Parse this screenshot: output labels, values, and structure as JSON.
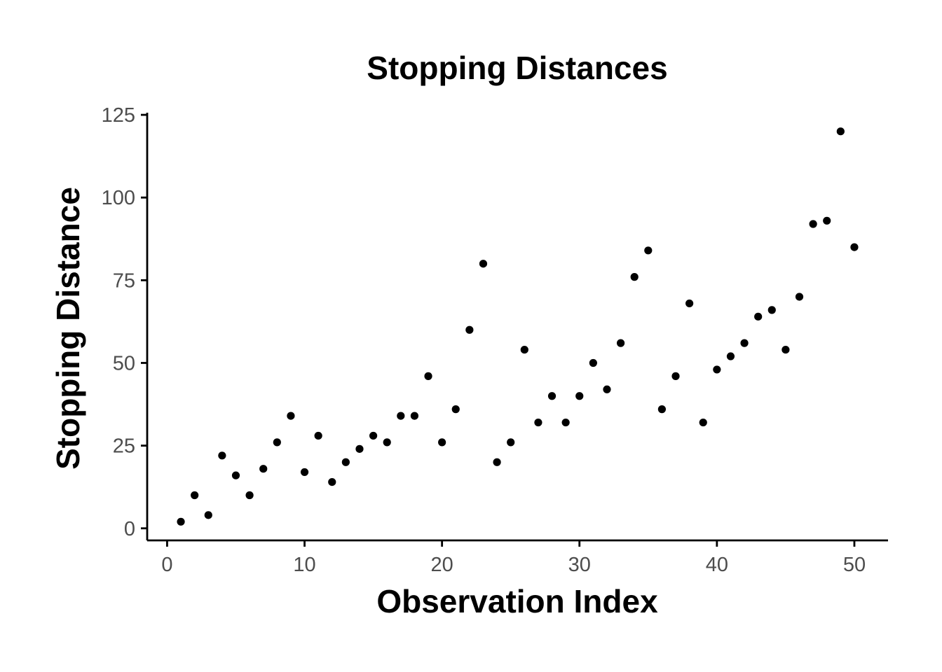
{
  "chart_data": {
    "type": "scatter",
    "title": "Stopping Distances",
    "xlabel": "Observation Index",
    "ylabel": "Stopping Distance",
    "xlim": [
      -1.45,
      52.45
    ],
    "ylim": [
      -3.65,
      125.65
    ],
    "x_ticks": [
      0,
      10,
      20,
      30,
      40,
      50
    ],
    "y_ticks": [
      0,
      25,
      50,
      75,
      100,
      125
    ],
    "x_tick_labels": [
      "0",
      "10",
      "20",
      "30",
      "40",
      "50"
    ],
    "y_tick_labels": [
      "0",
      "25",
      "50",
      "75",
      "100",
      "125"
    ],
    "grid": false,
    "legend": "none",
    "point_color": "#000000",
    "x": [
      1,
      2,
      3,
      4,
      5,
      6,
      7,
      8,
      9,
      10,
      11,
      12,
      13,
      14,
      15,
      16,
      17,
      18,
      19,
      20,
      21,
      22,
      23,
      24,
      25,
      26,
      27,
      28,
      29,
      30,
      31,
      32,
      33,
      34,
      35,
      36,
      37,
      38,
      39,
      40,
      41,
      42,
      43,
      44,
      45,
      46,
      47,
      48,
      49,
      50
    ],
    "y": [
      2,
      10,
      4,
      22,
      16,
      10,
      18,
      26,
      34,
      17,
      28,
      14,
      20,
      24,
      28,
      26,
      34,
      34,
      46,
      26,
      36,
      60,
      80,
      20,
      26,
      54,
      32,
      40,
      32,
      40,
      50,
      42,
      56,
      76,
      84,
      36,
      46,
      68,
      32,
      48,
      52,
      56,
      64,
      66,
      54,
      70,
      92,
      93,
      120,
      85
    ]
  }
}
